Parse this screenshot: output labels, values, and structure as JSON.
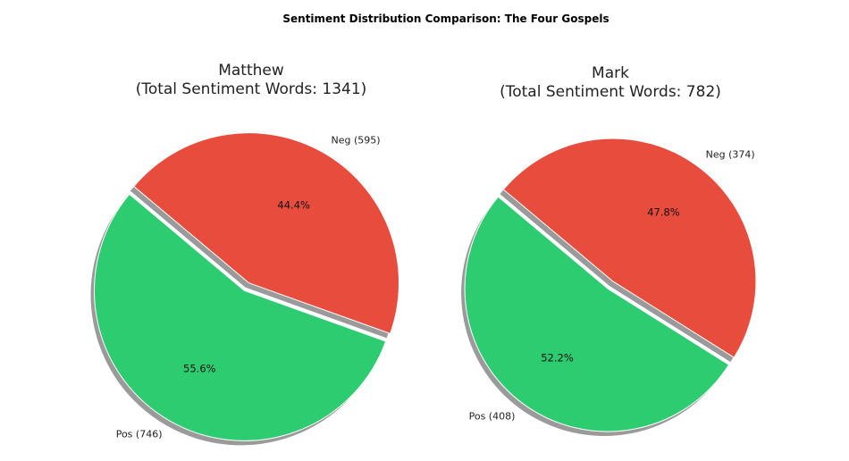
{
  "chart_data": {
    "type": "pie",
    "title": "Sentiment Distribution Comparison: The Four Gospels",
    "colors": {
      "Pos": "#2ecc71",
      "Neg": "#e74c3c",
      "shadow": "#9a9a9a"
    },
    "charts": [
      {
        "title_line1": "Matthew",
        "title_line2": "(Total Sentiment Words: 1341)",
        "slices": [
          {
            "name": "Pos",
            "label": "Pos (746)",
            "value": 746,
            "pct_label": "55.6%"
          },
          {
            "name": "Neg",
            "label": "Neg (595)",
            "value": 595,
            "pct_label": "44.4%"
          }
        ]
      },
      {
        "title_line1": "Mark",
        "title_line2": "(Total Sentiment Words: 782)",
        "slices": [
          {
            "name": "Pos",
            "label": "Pos (408)",
            "value": 408,
            "pct_label": "52.2%"
          },
          {
            "name": "Neg",
            "label": "Neg (374)",
            "value": 374,
            "pct_label": "47.8%"
          }
        ]
      }
    ]
  }
}
